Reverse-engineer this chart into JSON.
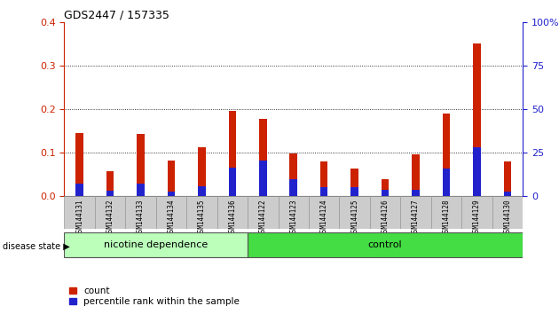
{
  "title": "GDS2447 / 157335",
  "categories": [
    "GSM144131",
    "GSM144132",
    "GSM144133",
    "GSM144134",
    "GSM144135",
    "GSM144136",
    "GSM144122",
    "GSM144123",
    "GSM144124",
    "GSM144125",
    "GSM144126",
    "GSM144127",
    "GSM144128",
    "GSM144129",
    "GSM144130"
  ],
  "count_values": [
    0.145,
    0.058,
    0.143,
    0.082,
    0.113,
    0.195,
    0.178,
    0.098,
    0.08,
    0.063,
    0.04,
    0.097,
    0.19,
    0.35,
    0.08
  ],
  "percentile_values": [
    0.03,
    0.012,
    0.028,
    0.01,
    0.022,
    0.065,
    0.082,
    0.04,
    0.02,
    0.02,
    0.015,
    0.015,
    0.063,
    0.113,
    0.01
  ],
  "group1_label": "nicotine dependence",
  "group2_label": "control",
  "group1_count": 6,
  "group2_count": 9,
  "ylim": [
    0,
    0.4
  ],
  "ylim_right": [
    0,
    100
  ],
  "yticks_left": [
    0,
    0.1,
    0.2,
    0.3,
    0.4
  ],
  "yticks_right": [
    0,
    25,
    50,
    75,
    100
  ],
  "ytick_labels_right": [
    "0",
    "25",
    "50",
    "75",
    "100%"
  ],
  "bar_color_count": "#cc2200",
  "bar_color_percentile": "#2222cc",
  "group1_bg": "#bbffbb",
  "group2_bg": "#44dd44",
  "tick_bg": "#cccccc",
  "legend_count": "count",
  "legend_percentile": "percentile rank within the sample",
  "disease_state_label": "disease state"
}
